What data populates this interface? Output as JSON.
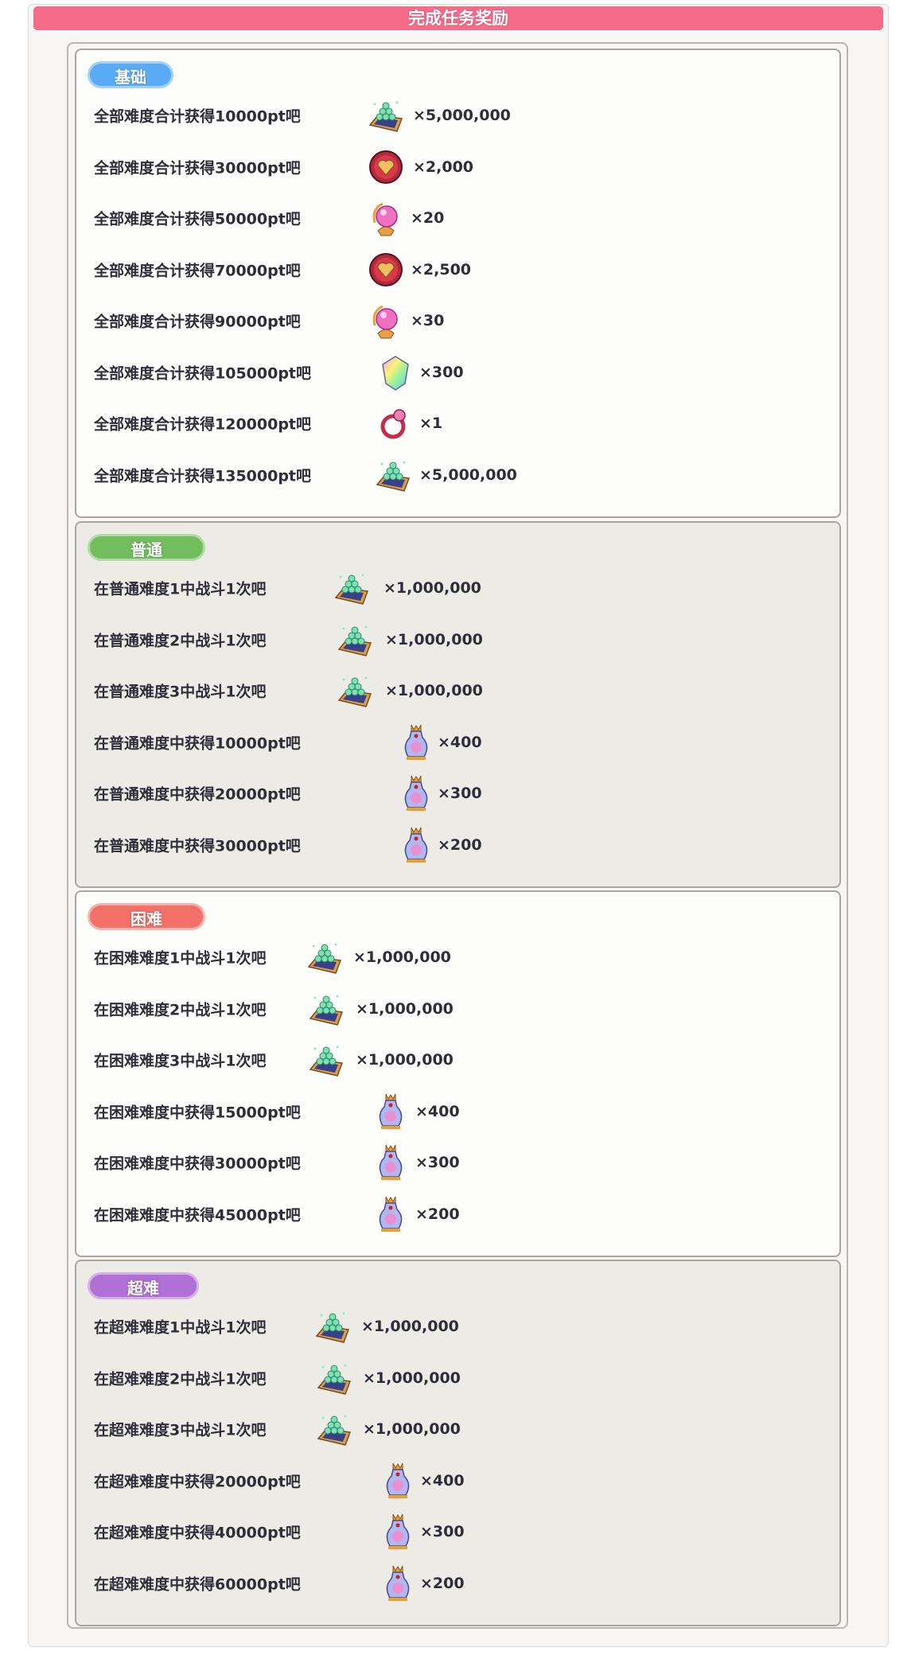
{
  "header": {
    "title": "完成任务奖励"
  },
  "colors": {
    "header": "#f56c8a",
    "basic": "#5aabf5",
    "normal": "#72bd5e",
    "hard": "#f27068",
    "super": "#b070d6"
  },
  "sections": [
    {
      "label": "基础",
      "color": "#5aabf5",
      "rows": [
        {
          "task": "全部难度合计获得10000pt吧",
          "icon": "mana-gems-icon",
          "amount": "×5,000,000"
        },
        {
          "task": "全部难度合计获得30000pt吧",
          "icon": "heart-medal-icon",
          "amount": "×2,000"
        },
        {
          "task": "全部难度合计获得50000pt吧",
          "icon": "pink-orb-icon",
          "amount": "×20"
        },
        {
          "task": "全部难度合计获得70000pt吧",
          "icon": "heart-medal-icon",
          "amount": "×2,500"
        },
        {
          "task": "全部难度合计获得90000pt吧",
          "icon": "pink-orb-icon",
          "amount": "×30"
        },
        {
          "task": "全部难度合计获得105000pt吧",
          "icon": "rainbow-crystal-icon",
          "amount": "×300"
        },
        {
          "task": "全部难度合计获得120000pt吧",
          "icon": "ring-icon",
          "amount": "×1"
        },
        {
          "task": "全部难度合计获得135000pt吧",
          "icon": "mana-gems-icon",
          "amount": "×5,000,000"
        }
      ]
    },
    {
      "label": "普通",
      "color": "#72bd5e",
      "rows": [
        {
          "task": "在普通难度1中战斗1次吧",
          "icon": "mana-gems-icon",
          "amount": "×1,000,000"
        },
        {
          "task": "在普通难度2中战斗1次吧",
          "icon": "mana-gems-icon",
          "amount": "×1,000,000"
        },
        {
          "task": "在普通难度3中战斗1次吧",
          "icon": "mana-gems-icon",
          "amount": "×1,000,000"
        },
        {
          "task": "在普通难度中获得10000pt吧",
          "icon": "crowned-vase-icon",
          "amount": "×400"
        },
        {
          "task": "在普通难度中获得20000pt吧",
          "icon": "crowned-vase-icon",
          "amount": "×300"
        },
        {
          "task": "在普通难度中获得30000pt吧",
          "icon": "crowned-vase-icon",
          "amount": "×200"
        }
      ]
    },
    {
      "label": "困难",
      "color": "#f27068",
      "rows": [
        {
          "task": "在困难难度1中战斗1次吧",
          "icon": "mana-gems-icon",
          "amount": "×1,000,000"
        },
        {
          "task": "在困难难度2中战斗1次吧",
          "icon": "mana-gems-icon",
          "amount": "×1,000,000"
        },
        {
          "task": "在困难难度3中战斗1次吧",
          "icon": "mana-gems-icon",
          "amount": "×1,000,000"
        },
        {
          "task": "在困难难度中获得15000pt吧",
          "icon": "crowned-vase-icon",
          "amount": "×400"
        },
        {
          "task": "在困难难度中获得30000pt吧",
          "icon": "crowned-vase-icon",
          "amount": "×300"
        },
        {
          "task": "在困难难度中获得45000pt吧",
          "icon": "crowned-vase-icon",
          "amount": "×200"
        }
      ]
    },
    {
      "label": "超难",
      "color": "#b070d6",
      "rows": [
        {
          "task": "在超难难度1中战斗1次吧",
          "icon": "mana-gems-icon",
          "amount": "×1,000,000"
        },
        {
          "task": "在超难难度2中战斗1次吧",
          "icon": "mana-gems-icon",
          "amount": "×1,000,000"
        },
        {
          "task": "在超难难度3中战斗1次吧",
          "icon": "mana-gems-icon",
          "amount": "×1,000,000"
        },
        {
          "task": "在超难难度中获得20000pt吧",
          "icon": "crowned-vase-icon",
          "amount": "×400"
        },
        {
          "task": "在超难难度中获得40000pt吧",
          "icon": "crowned-vase-icon",
          "amount": "×300"
        },
        {
          "task": "在超难难度中获得60000pt吧",
          "icon": "crowned-vase-icon",
          "amount": "×200"
        }
      ]
    }
  ]
}
